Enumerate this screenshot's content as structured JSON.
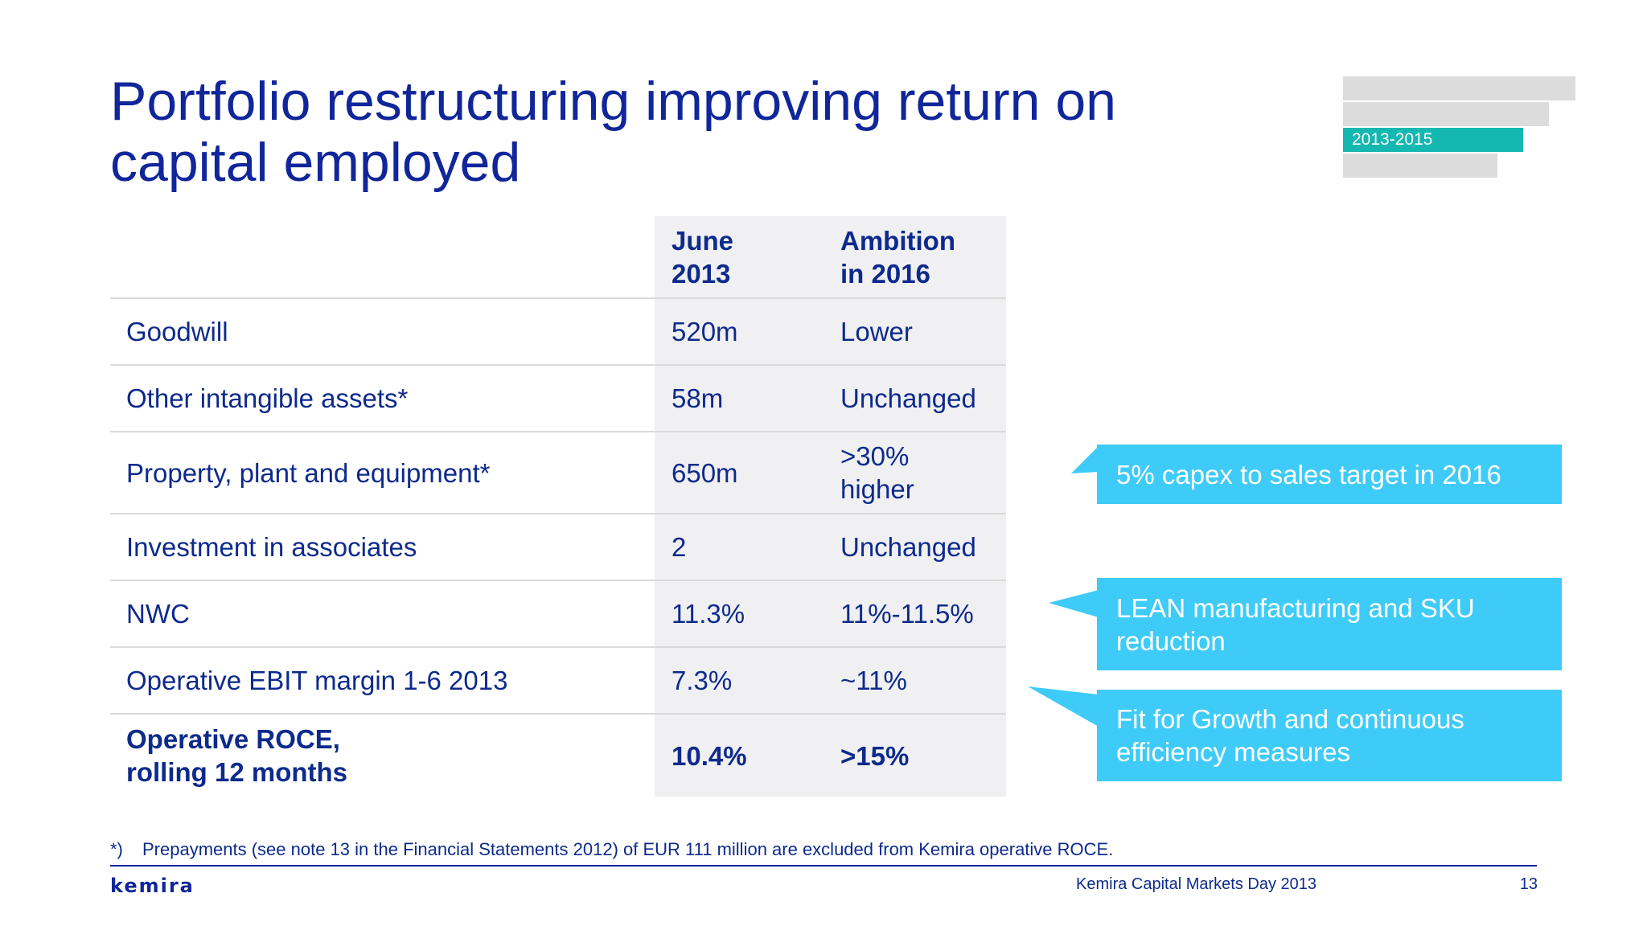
{
  "slide": {
    "title_line1": "Portfolio restructuring improving return on",
    "title_line2": "capital employed"
  },
  "timeline": {
    "active_label": "2013-2015",
    "accent_color": "#14b8b0"
  },
  "table": {
    "headers": [
      "",
      "June 2013",
      "Ambition in 2016"
    ],
    "header_col2_line1": "June",
    "header_col2_line2": "2013",
    "header_col3_line1": "Ambition",
    "header_col3_line2": "in 2016",
    "rows": [
      {
        "label": "Goodwill",
        "june_2013": "520m",
        "ambition_2016": "Lower"
      },
      {
        "label": "Other intangible assets*",
        "june_2013": "58m",
        "ambition_2016": "Unchanged"
      },
      {
        "label": "Property, plant and equipment*",
        "june_2013": "650m",
        "ambition_2016_line1": ">30%",
        "ambition_2016_line2": "higher"
      },
      {
        "label": "Investment in associates",
        "june_2013": "2",
        "ambition_2016": "Unchanged"
      },
      {
        "label": "NWC",
        "june_2013": "11.3%",
        "ambition_2016": "11%-11.5%"
      },
      {
        "label": "Operative EBIT margin 1-6 2013",
        "june_2013": "7.3%",
        "ambition_2016": "~11%"
      },
      {
        "label_line1": "Operative ROCE,",
        "label_line2": "rolling 12 months",
        "june_2013": "10.4%",
        "ambition_2016": ">15%"
      }
    ]
  },
  "callouts": [
    {
      "text": "5% capex to sales target in 2016"
    },
    {
      "text_line1": "LEAN manufacturing and SKU",
      "text_line2": "reduction"
    },
    {
      "text_line1": "Fit for Growth and continuous",
      "text_line2": "efficiency measures"
    }
  ],
  "callout_color": "#3fcbf7",
  "footnote": {
    "mark": "*)",
    "text": "Prepayments (see note 13 in the Financial Statements 2012) of EUR 111 million are excluded from Kemira operative ROCE."
  },
  "footer": {
    "logo": "kemira",
    "event": "Kemira Capital Markets Day 2013",
    "page_number": "13"
  }
}
